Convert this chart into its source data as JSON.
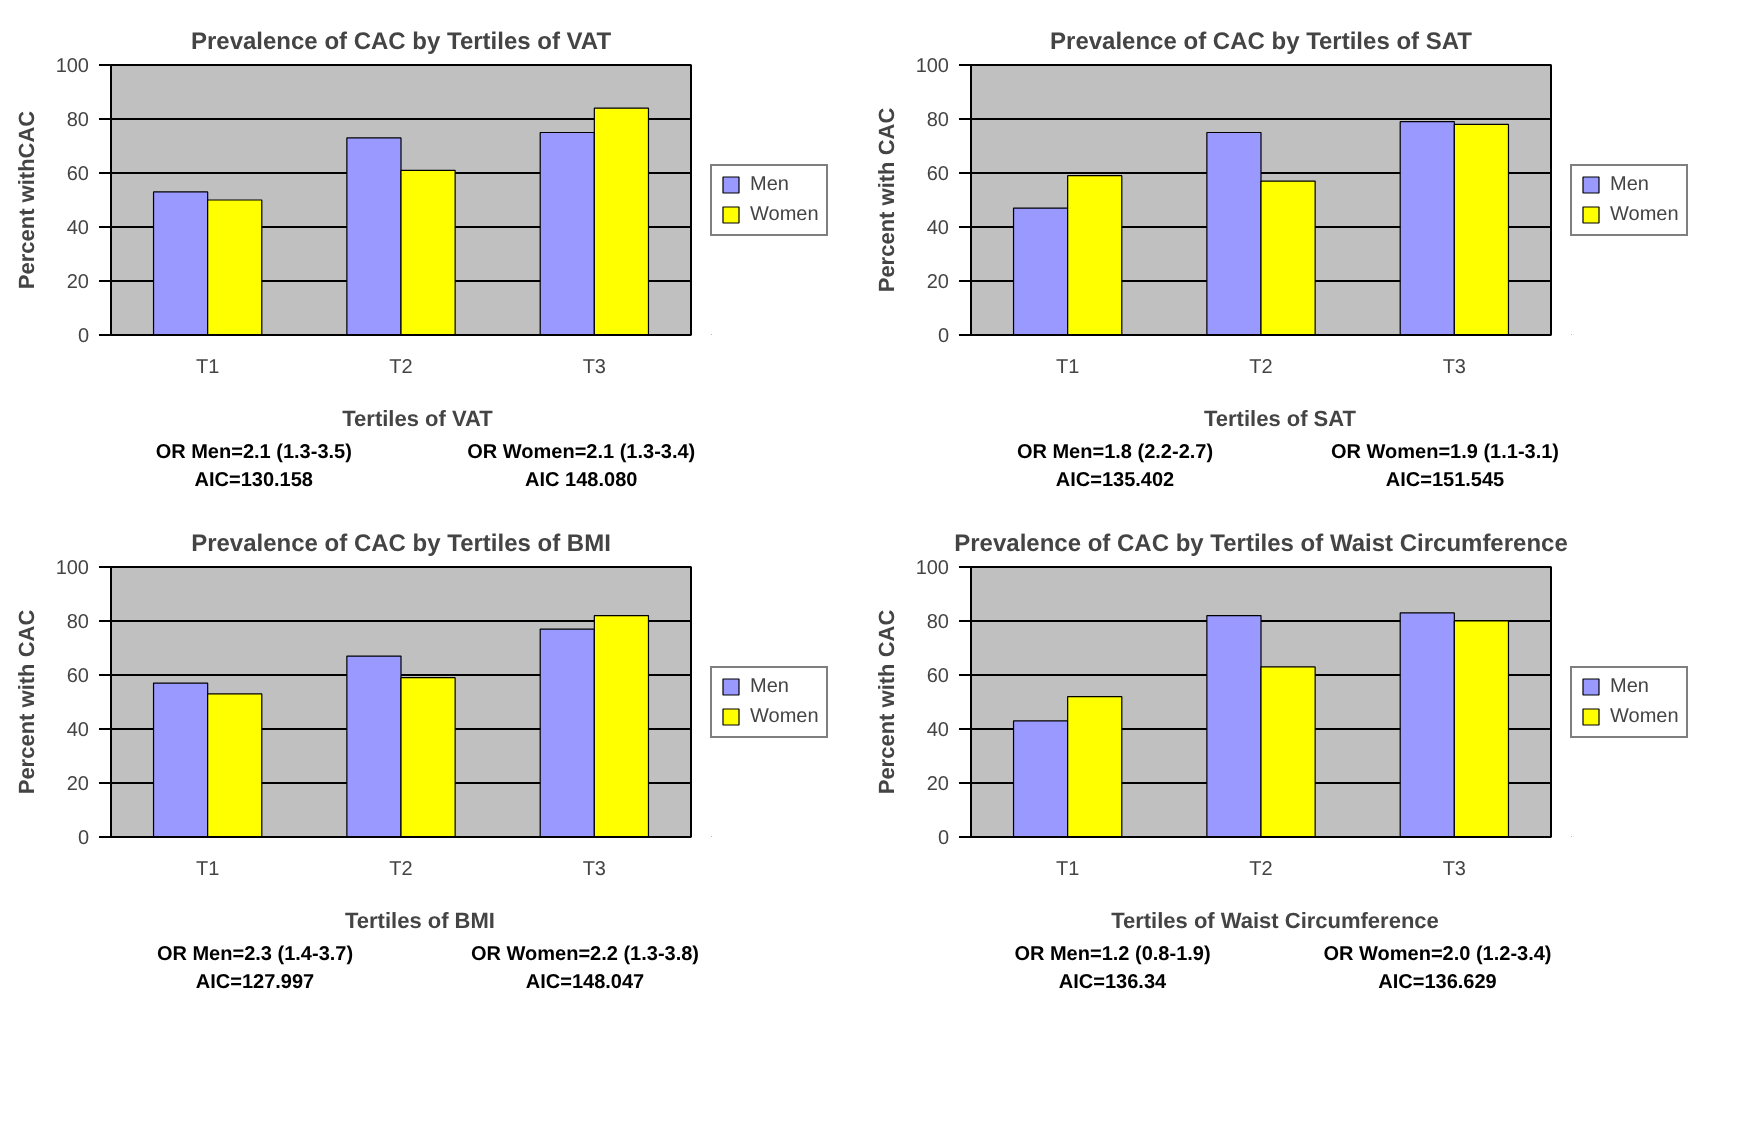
{
  "chart_data": [
    {
      "type": "bar",
      "title": "Prevalence of CAC by Tertiles of VAT",
      "xlabel": "Tertiles of VAT",
      "ylabel": "Percent withCAC",
      "categories": [
        "T1",
        "T2",
        "T3"
      ],
      "series": [
        {
          "name": "Men",
          "color": "#9999ff",
          "values": [
            53,
            73,
            75
          ]
        },
        {
          "name": "Women",
          "color": "#ffff00",
          "values": [
            50,
            61,
            84
          ]
        }
      ],
      "ylim": [
        0,
        100
      ],
      "yticks": [
        0,
        20,
        40,
        60,
        80,
        100
      ],
      "grid": "y",
      "legend": "right",
      "annotations": [
        "OR Men=2.1 (1.3-3.5)",
        "OR Women=2.1 (1.3-3.4)",
        "AIC=130.158",
        "AIC 148.080"
      ]
    },
    {
      "type": "bar",
      "title": "Prevalence of CAC by Tertiles of SAT",
      "xlabel": "Tertiles of SAT",
      "ylabel": "Percent with CAC",
      "categories": [
        "T1",
        "T2",
        "T3"
      ],
      "series": [
        {
          "name": "Men",
          "color": "#9999ff",
          "values": [
            47,
            75,
            79
          ]
        },
        {
          "name": "Women",
          "color": "#ffff00",
          "values": [
            59,
            57,
            78
          ]
        }
      ],
      "ylim": [
        0,
        100
      ],
      "yticks": [
        0,
        20,
        40,
        60,
        80,
        100
      ],
      "grid": "y",
      "legend": "right",
      "annotations": [
        "OR Men=1.8 (2.2-2.7)",
        "OR Women=1.9 (1.1-3.1)",
        "AIC=135.402",
        "AIC=151.545"
      ]
    },
    {
      "type": "bar",
      "title": "Prevalence of CAC by Tertiles of BMI",
      "xlabel": "Tertiles of BMI",
      "ylabel": "Percent with CAC",
      "categories": [
        "T1",
        "T2",
        "T3"
      ],
      "series": [
        {
          "name": "Men",
          "color": "#9999ff",
          "values": [
            57,
            67,
            77
          ]
        },
        {
          "name": "Women",
          "color": "#ffff00",
          "values": [
            53,
            59,
            82
          ]
        }
      ],
      "ylim": [
        0,
        100
      ],
      "yticks": [
        0,
        20,
        40,
        60,
        80,
        100
      ],
      "grid": "y",
      "legend": "right",
      "annotations": [
        "OR Men=2.3 (1.4-3.7)",
        "OR Women=2.2 (1.3-3.8)",
        "AIC=127.997",
        "AIC=148.047"
      ]
    },
    {
      "type": "bar",
      "title": "Prevalence of CAC by Tertiles of Waist Circumference",
      "xlabel": "Tertiles of Waist Circumference",
      "ylabel": "Percent with CAC",
      "categories": [
        "T1",
        "T2",
        "T3"
      ],
      "series": [
        {
          "name": "Men",
          "color": "#9999ff",
          "values": [
            43,
            82,
            83
          ]
        },
        {
          "name": "Women",
          "color": "#ffff00",
          "values": [
            52,
            63,
            80
          ]
        }
      ],
      "ylim": [
        0,
        100
      ],
      "yticks": [
        0,
        20,
        40,
        60,
        80,
        100
      ],
      "grid": "y",
      "legend": "right",
      "annotations": [
        "OR Men=1.2 (0.8-1.9)",
        "OR Women=2.0 (1.2-3.4)",
        "AIC=136.34",
        "AIC=136.629"
      ]
    }
  ]
}
